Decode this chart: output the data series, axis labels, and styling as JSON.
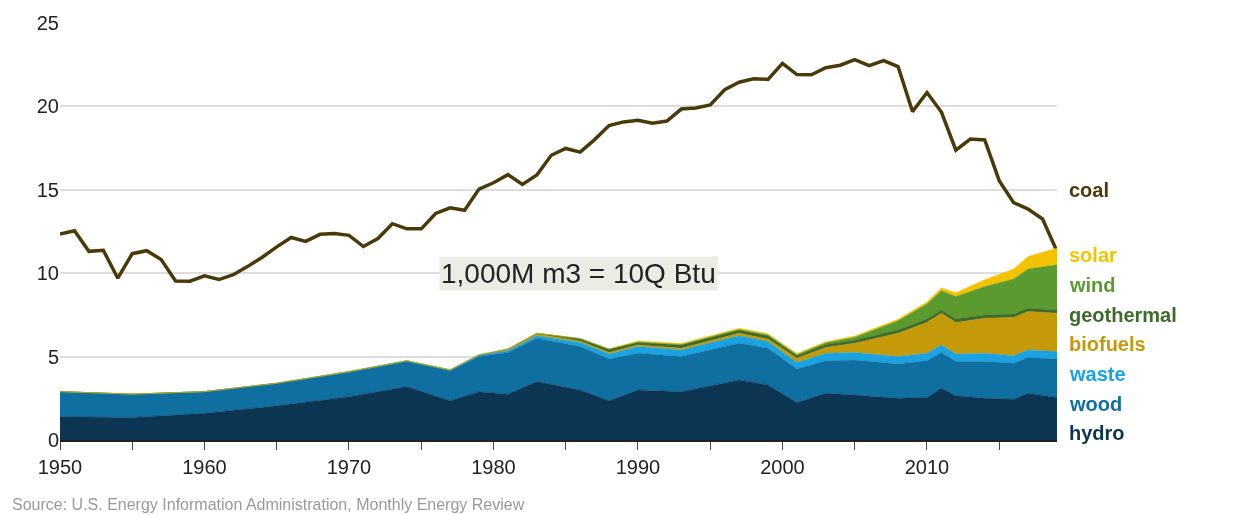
{
  "chart_data": {
    "type": "area",
    "stacked": true,
    "legend": false,
    "grid": "y",
    "x": [
      1950,
      1951,
      1952,
      1953,
      1954,
      1955,
      1956,
      1957,
      1958,
      1959,
      1960,
      1961,
      1962,
      1963,
      1964,
      1965,
      1966,
      1967,
      1968,
      1969,
      1970,
      1971,
      1972,
      1973,
      1974,
      1975,
      1976,
      1977,
      1978,
      1979,
      1980,
      1981,
      1982,
      1983,
      1984,
      1985,
      1986,
      1987,
      1988,
      1989,
      1990,
      1991,
      1992,
      1993,
      1994,
      1995,
      1996,
      1997,
      1998,
      1999,
      2000,
      2001,
      2002,
      2003,
      2004,
      2005,
      2006,
      2007,
      2008,
      2009,
      2010,
      2011,
      2012,
      2013,
      2014,
      2015,
      2016,
      2017,
      2018,
      2019
    ],
    "series": [
      {
        "name": "coal",
        "type": "line",
        "color": "#4a3a0a",
        "values": [
          12.35,
          12.55,
          11.31,
          11.37,
          9.7,
          11.17,
          11.35,
          10.82,
          9.53,
          9.52,
          9.84,
          9.62,
          9.91,
          10.41,
          10.96,
          11.58,
          12.14,
          11.91,
          12.33,
          12.38,
          12.27,
          11.6,
          12.08,
          12.97,
          12.66,
          12.66,
          13.58,
          13.92,
          13.77,
          15.04,
          15.42,
          15.91,
          15.32,
          15.89,
          17.07,
          17.48,
          17.26,
          18.01,
          18.85,
          19.07,
          19.17,
          18.99,
          19.12,
          19.84,
          19.91,
          20.09,
          21.0,
          21.45,
          21.66,
          21.62,
          22.58,
          21.91,
          21.9,
          22.32,
          22.47,
          22.8,
          22.45,
          22.75,
          22.39,
          19.69,
          20.83,
          19.66,
          17.38,
          18.04,
          17.99,
          15.55,
          14.23,
          13.84,
          13.25,
          11.32
        ]
      },
      {
        "name": "hydro",
        "color": "#0b3552",
        "x": [
          1950,
          1955,
          1960,
          1965,
          1970,
          1974,
          1977,
          1979,
          1981,
          1983,
          1986,
          1988,
          1990,
          1993,
          1997,
          1999,
          2001,
          2003,
          2005,
          2008,
          2010,
          2011,
          2012,
          2014,
          2016,
          2017,
          2019
        ],
        "values": [
          1.4,
          1.35,
          1.6,
          2.05,
          2.6,
          3.2,
          2.35,
          2.9,
          2.75,
          3.5,
          3.0,
          2.35,
          3.0,
          2.9,
          3.6,
          3.3,
          2.25,
          2.8,
          2.7,
          2.5,
          2.55,
          3.1,
          2.65,
          2.5,
          2.45,
          2.8,
          2.55
        ]
      },
      {
        "name": "wood",
        "color": "#0f6fa0",
        "x": [
          1950,
          1955,
          1960,
          1965,
          1970,
          1974,
          1977,
          1979,
          1981,
          1983,
          1986,
          1988,
          1990,
          1993,
          1997,
          1999,
          2001,
          2003,
          2005,
          2008,
          2010,
          2011,
          2012,
          2014,
          2016,
          2017,
          2019
        ],
        "values": [
          1.5,
          1.4,
          1.3,
          1.35,
          1.45,
          1.5,
          1.8,
          2.1,
          2.5,
          2.6,
          2.6,
          2.5,
          2.2,
          2.1,
          2.2,
          2.2,
          2.0,
          1.95,
          2.1,
          2.05,
          2.2,
          2.15,
          2.05,
          2.2,
          2.15,
          2.15,
          2.3
        ]
      },
      {
        "name": "waste",
        "color": "#1aa3e0",
        "x": [
          1950,
          1955,
          1960,
          1965,
          1970,
          1974,
          1977,
          1979,
          1981,
          1983,
          1986,
          1988,
          1990,
          1993,
          1997,
          1999,
          2001,
          2003,
          2005,
          2008,
          2010,
          2011,
          2012,
          2014,
          2016,
          2017,
          2019
        ],
        "values": [
          0,
          0,
          0,
          0,
          0.05,
          0.05,
          0.05,
          0.1,
          0.1,
          0.15,
          0.25,
          0.3,
          0.4,
          0.4,
          0.45,
          0.4,
          0.4,
          0.45,
          0.45,
          0.45,
          0.45,
          0.45,
          0.45,
          0.5,
          0.45,
          0.45,
          0.45
        ]
      },
      {
        "name": "biofuels",
        "color": "#c49a0a",
        "x": [
          1950,
          1955,
          1960,
          1965,
          1970,
          1974,
          1977,
          1979,
          1981,
          1983,
          1986,
          1988,
          1990,
          1993,
          1997,
          1999,
          2001,
          2003,
          2005,
          2008,
          2010,
          2011,
          2012,
          2014,
          2016,
          2017,
          2019
        ],
        "values": [
          0,
          0,
          0,
          0,
          0,
          0,
          0,
          0,
          0.05,
          0.1,
          0.08,
          0.1,
          0.1,
          0.1,
          0.15,
          0.15,
          0.25,
          0.35,
          0.55,
          1.4,
          1.85,
          1.9,
          1.9,
          2.1,
          2.3,
          2.3,
          2.3
        ]
      },
      {
        "name": "geothermal",
        "color": "#3d6b2a",
        "x": [
          1950,
          1955,
          1960,
          1965,
          1970,
          1974,
          1977,
          1979,
          1981,
          1983,
          1986,
          1988,
          1990,
          1993,
          1997,
          1999,
          2001,
          2003,
          2005,
          2008,
          2010,
          2011,
          2012,
          2014,
          2016,
          2017,
          2019
        ],
        "values": [
          0,
          0,
          0,
          0,
          0,
          0,
          0,
          0,
          0.05,
          0.05,
          0.15,
          0.2,
          0.15,
          0.2,
          0.2,
          0.2,
          0.15,
          0.18,
          0.18,
          0.2,
          0.2,
          0.2,
          0.2,
          0.2,
          0.2,
          0.2,
          0.2
        ]
      },
      {
        "name": "wind",
        "color": "#5b9a2f",
        "x": [
          1950,
          1955,
          1960,
          1965,
          1970,
          1974,
          1977,
          1979,
          1981,
          1983,
          1986,
          1988,
          1990,
          1993,
          1997,
          1999,
          2001,
          2003,
          2005,
          2008,
          2010,
          2011,
          2012,
          2014,
          2016,
          2017,
          2019
        ],
        "values": [
          0,
          0,
          0,
          0,
          0,
          0,
          0,
          0,
          0,
          0,
          0,
          0,
          0.03,
          0.03,
          0.03,
          0.05,
          0.07,
          0.1,
          0.18,
          0.55,
          0.9,
          1.15,
          1.35,
          1.7,
          2.1,
          2.35,
          2.7
        ]
      },
      {
        "name": "solar",
        "color": "#f5c200",
        "x": [
          1950,
          1955,
          1960,
          1965,
          1970,
          1974,
          1977,
          1979,
          1981,
          1983,
          1986,
          1988,
          1990,
          1993,
          1997,
          1999,
          2001,
          2003,
          2005,
          2008,
          2010,
          2011,
          2012,
          2014,
          2016,
          2017,
          2019
        ],
        "values": [
          0,
          0,
          0,
          0,
          0,
          0,
          0,
          0,
          0,
          0,
          0,
          0,
          0.06,
          0.06,
          0.07,
          0.07,
          0.06,
          0.06,
          0.07,
          0.09,
          0.13,
          0.17,
          0.23,
          0.4,
          0.6,
          0.75,
          1.0
        ]
      }
    ],
    "xlim": [
      1950,
      2019
    ],
    "xticks": [
      1950,
      {
        "value": 1955,
        "label": null
      },
      1960,
      {
        "value": 1965,
        "label": null
      },
      1970,
      {
        "value": 1975,
        "label": null
      },
      1980,
      {
        "value": 1985,
        "label": null
      },
      1990,
      {
        "value": 1995,
        "label": null
      },
      2000,
      {
        "value": 2005,
        "label": null
      },
      2010,
      {
        "value": 2015,
        "label": null
      }
    ],
    "ylim": [
      0,
      25
    ],
    "yticks": [
      0,
      5,
      10,
      15,
      20,
      25
    ],
    "annotations": [
      "1,000M m3 = 10Q Btu",
      "Source: U.S. Energy Information Administration, Monthly Energy Review"
    ]
  }
}
